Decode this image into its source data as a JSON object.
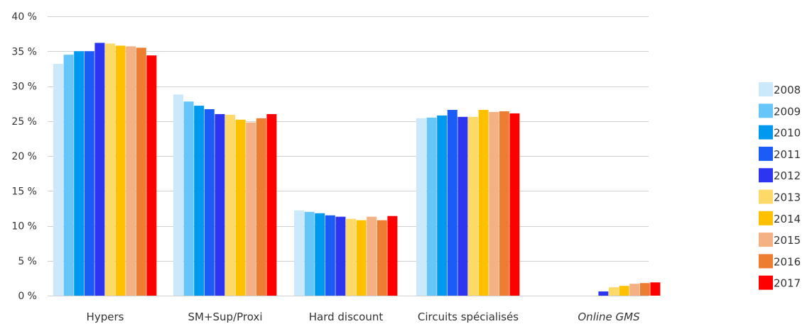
{
  "chart_data": {
    "type": "bar",
    "categories": [
      "Hypers",
      "SM+Sup/Proxi",
      "Hard discount",
      "Circuits spécialisés",
      "Online GMS"
    ],
    "category_italic": [
      false,
      false,
      false,
      false,
      true
    ],
    "ylim": [
      0,
      40
    ],
    "yticks": [
      0,
      5,
      10,
      15,
      20,
      25,
      30,
      35,
      40
    ],
    "ytick_labels": [
      "0 %",
      "5 %",
      "10 %",
      "15 %",
      "20 %",
      "25 %",
      "30 %",
      "35 %",
      "40 %"
    ],
    "grid": true,
    "legend_position": "right",
    "series": [
      {
        "name": "2008",
        "color": "#cce9fb",
        "values": [
          33.2,
          28.8,
          12.2,
          25.4,
          0.0
        ]
      },
      {
        "name": "2009",
        "color": "#66c6f9",
        "values": [
          34.5,
          27.8,
          12.0,
          25.5,
          0.0
        ]
      },
      {
        "name": "2010",
        "color": "#0099f0",
        "values": [
          35.0,
          27.2,
          11.8,
          25.8,
          0.0
        ]
      },
      {
        "name": "2011",
        "color": "#1a5cf5",
        "values": [
          35.0,
          26.7,
          11.5,
          26.6,
          0.0
        ]
      },
      {
        "name": "2012",
        "color": "#2e35f0",
        "values": [
          36.2,
          26.0,
          11.3,
          25.6,
          0.6
        ]
      },
      {
        "name": "2013",
        "color": "#fdd968",
        "values": [
          36.1,
          25.9,
          11.0,
          25.6,
          1.2
        ]
      },
      {
        "name": "2014",
        "color": "#ffc000",
        "values": [
          35.8,
          25.2,
          10.8,
          26.6,
          1.4
        ]
      },
      {
        "name": "2015",
        "color": "#f4b183",
        "values": [
          35.7,
          24.8,
          11.3,
          26.3,
          1.7
        ]
      },
      {
        "name": "2016",
        "color": "#ed7d31",
        "values": [
          35.5,
          25.4,
          10.8,
          26.4,
          1.8
        ]
      },
      {
        "name": "2017",
        "color": "#ff0000",
        "values": [
          34.4,
          26.0,
          11.4,
          26.1,
          1.9
        ]
      }
    ]
  }
}
